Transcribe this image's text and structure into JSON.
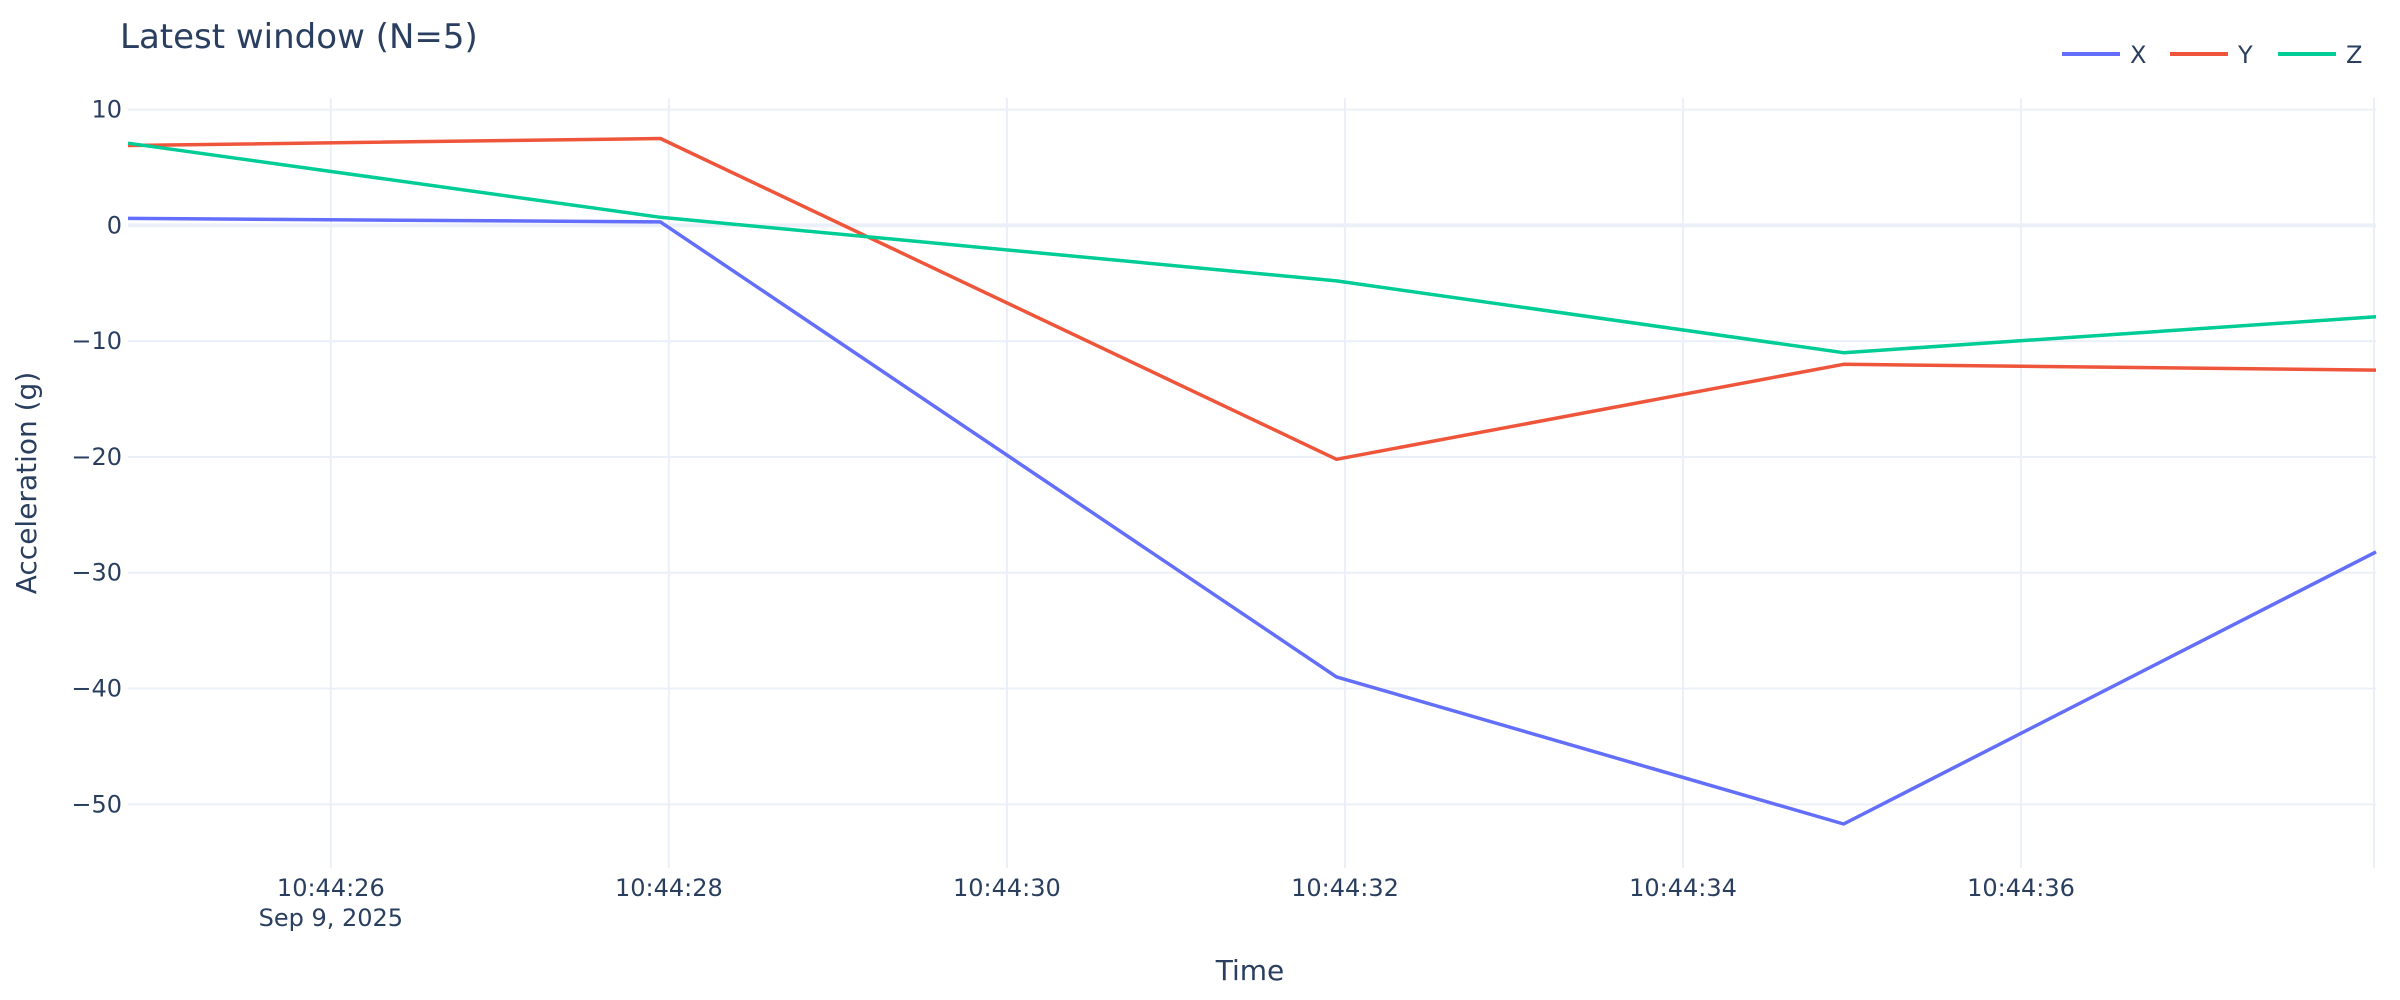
{
  "chart_data": {
    "type": "line",
    "title": "Latest window (N=5)",
    "xlabel": "Time",
    "ylabel": "Acceleration (g)",
    "x": [
      "2025-09-09T10:44:24.800",
      "2025-09-09T10:44:27.950",
      "2025-09-09T10:44:31.950",
      "2025-09-09T10:44:34.950",
      "2025-09-09T10:44:38.100"
    ],
    "series": [
      {
        "name": "X",
        "color": "#636efa",
        "values": [
          0.6,
          0.3,
          -39.0,
          -51.7,
          -28.2
        ]
      },
      {
        "name": "Y",
        "color": "#ef553b",
        "values": [
          6.9,
          7.5,
          -20.2,
          -12.0,
          -12.5
        ]
      },
      {
        "name": "Z",
        "color": "#00cc96",
        "values": [
          7.1,
          0.7,
          -4.8,
          -11.0,
          -7.9
        ]
      }
    ],
    "xlim": [
      "2025-09-09T10:44:24.800",
      "2025-09-09T10:44:38.100"
    ],
    "ylim": [
      -55.5,
      11
    ],
    "y_ticks": [
      10,
      0,
      -10,
      -20,
      -30,
      -40,
      -50
    ],
    "y_tick_labels": [
      "10",
      "0",
      "−10",
      "−20",
      "−30",
      "−40",
      "−50"
    ],
    "x_ticks": [
      "2025-09-09T10:44:26",
      "2025-09-09T10:44:28",
      "2025-09-09T10:44:30",
      "2025-09-09T10:44:32",
      "2025-09-09T10:44:34",
      "2025-09-09T10:44:36"
    ],
    "x_tick_labels": [
      "10:44:26",
      "10:44:28",
      "10:44:30",
      "10:44:32",
      "10:44:34",
      "10:44:36"
    ],
    "x_date_label": "Sep 9, 2025",
    "grid": true,
    "legend_position": "top-right",
    "legend_orientation": "horizontal"
  }
}
